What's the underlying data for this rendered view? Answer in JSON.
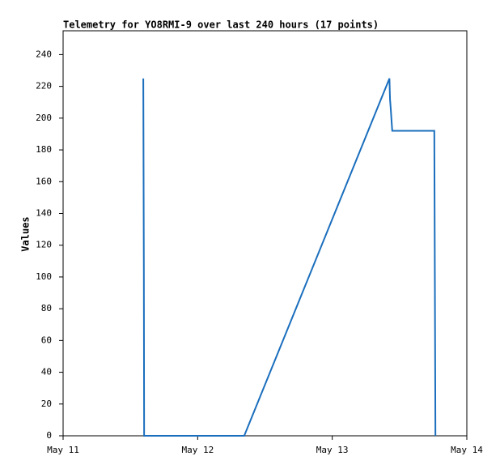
{
  "chart_data": {
    "type": "line",
    "title": "Telemetry for YO8RMI-9 over last 240 hours (17 points)",
    "y_label": "Values",
    "x": [
      14.3,
      14.4,
      14.45,
      20,
      26,
      32.3,
      58.2,
      58.25,
      58.3,
      58.45,
      58.6,
      58.7,
      61,
      63.5,
      66.2,
      66.3,
      66.4
    ],
    "series": [
      {
        "name": "Values",
        "color": "#1a6ebd",
        "values": [
          225,
          105,
          0,
          0,
          0,
          0,
          225,
          218,
          212,
          205,
          197,
          192,
          192,
          192,
          192,
          97,
          0
        ]
      }
    ],
    "xlim": [
      0,
      72
    ],
    "xticks": [
      {
        "value": 0,
        "label": "May 11"
      },
      {
        "value": 24,
        "label": "May 12"
      },
      {
        "value": 48,
        "label": "May 13"
      },
      {
        "value": 72,
        "label": "May 14"
      }
    ],
    "ylim": [
      0,
      255
    ],
    "yticks": [
      0,
      20,
      40,
      60,
      80,
      100,
      120,
      140,
      160,
      180,
      200,
      220,
      240
    ]
  }
}
